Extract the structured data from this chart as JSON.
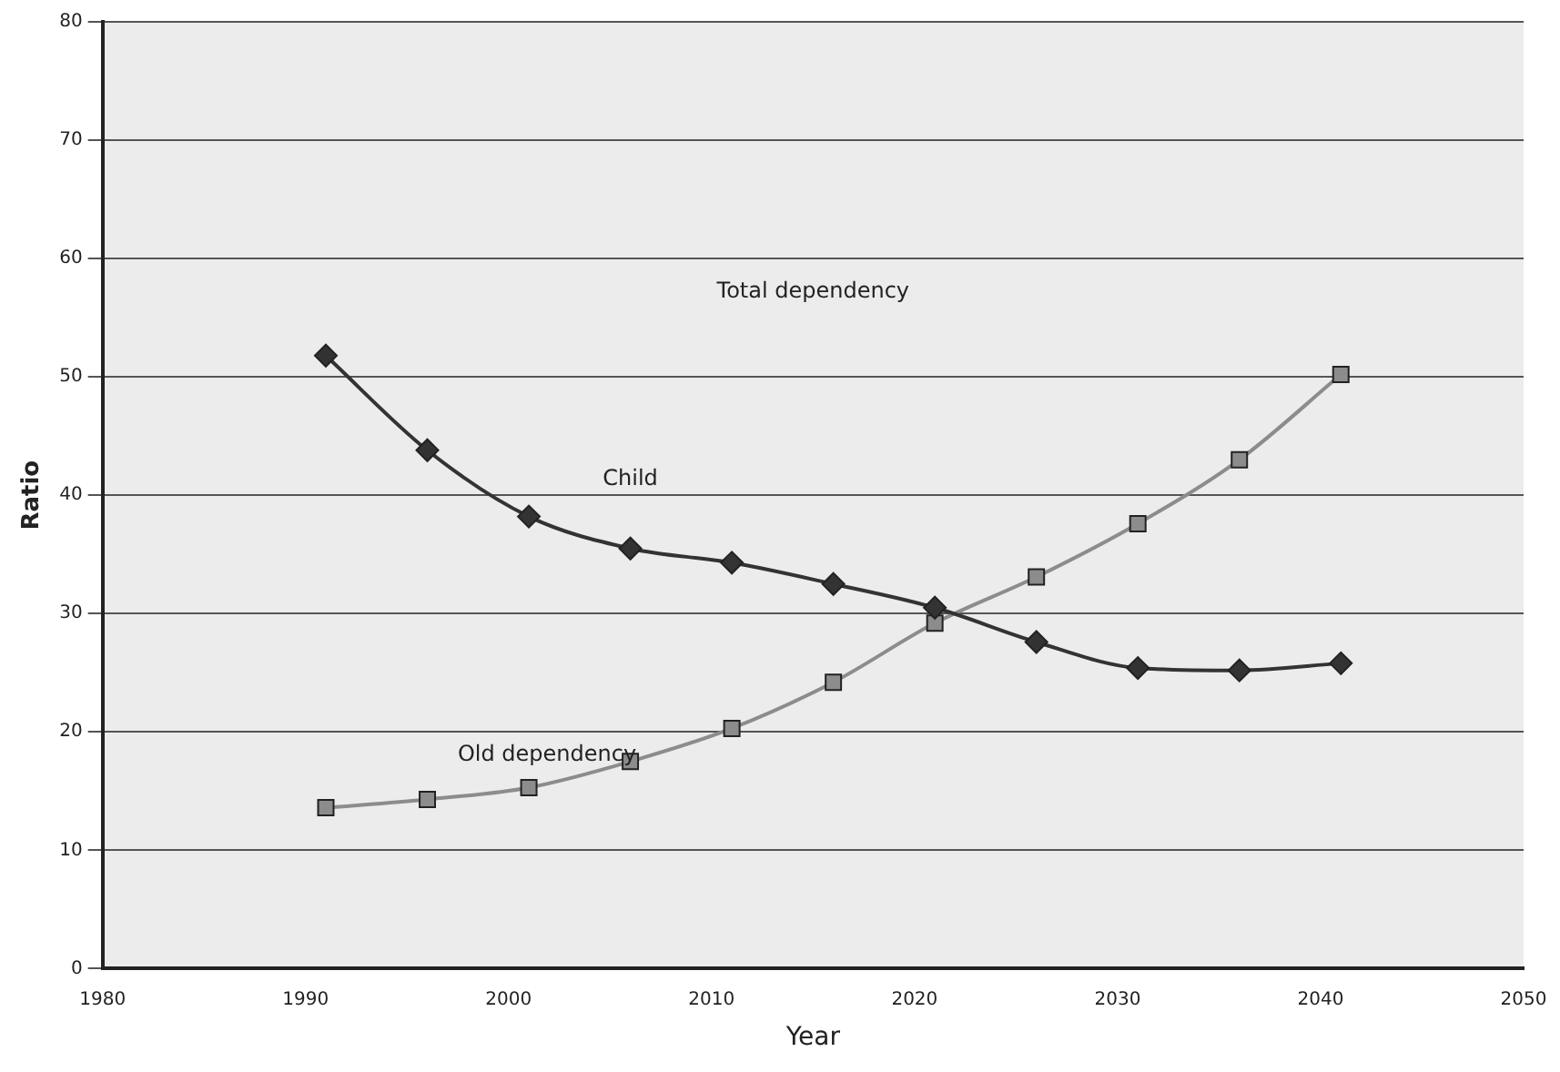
{
  "chart_data": {
    "type": "line",
    "xlabel": "Year",
    "ylabel": "Ratio",
    "x": [
      1991,
      1996,
      2001,
      2006,
      2011,
      2016,
      2021,
      2026,
      2031,
      2036,
      2041
    ],
    "series": [
      {
        "name": "Child",
        "color": "#333333",
        "marker": "diamond",
        "values": [
          51.8,
          43.8,
          38.2,
          35.5,
          34.3,
          32.5,
          30.5,
          27.6,
          25.4,
          25.2,
          25.8
        ]
      },
      {
        "name": "Old dependency",
        "color": "#8c8c8c",
        "marker": "square",
        "values": [
          13.6,
          14.3,
          15.3,
          17.5,
          20.3,
          24.2,
          29.2,
          33.1,
          37.6,
          43,
          50.2
        ]
      }
    ],
    "annotations": [
      "Total dependency"
    ],
    "xlim": [
      1980,
      2050
    ],
    "xticks": [
      1980,
      1990,
      2000,
      2010,
      2020,
      2030,
      2040,
      2050
    ],
    "ylim": [
      0,
      80
    ],
    "yticks": [
      0,
      10,
      20,
      30,
      40,
      50,
      60,
      70,
      80
    ],
    "grid": "y",
    "legend": false
  }
}
